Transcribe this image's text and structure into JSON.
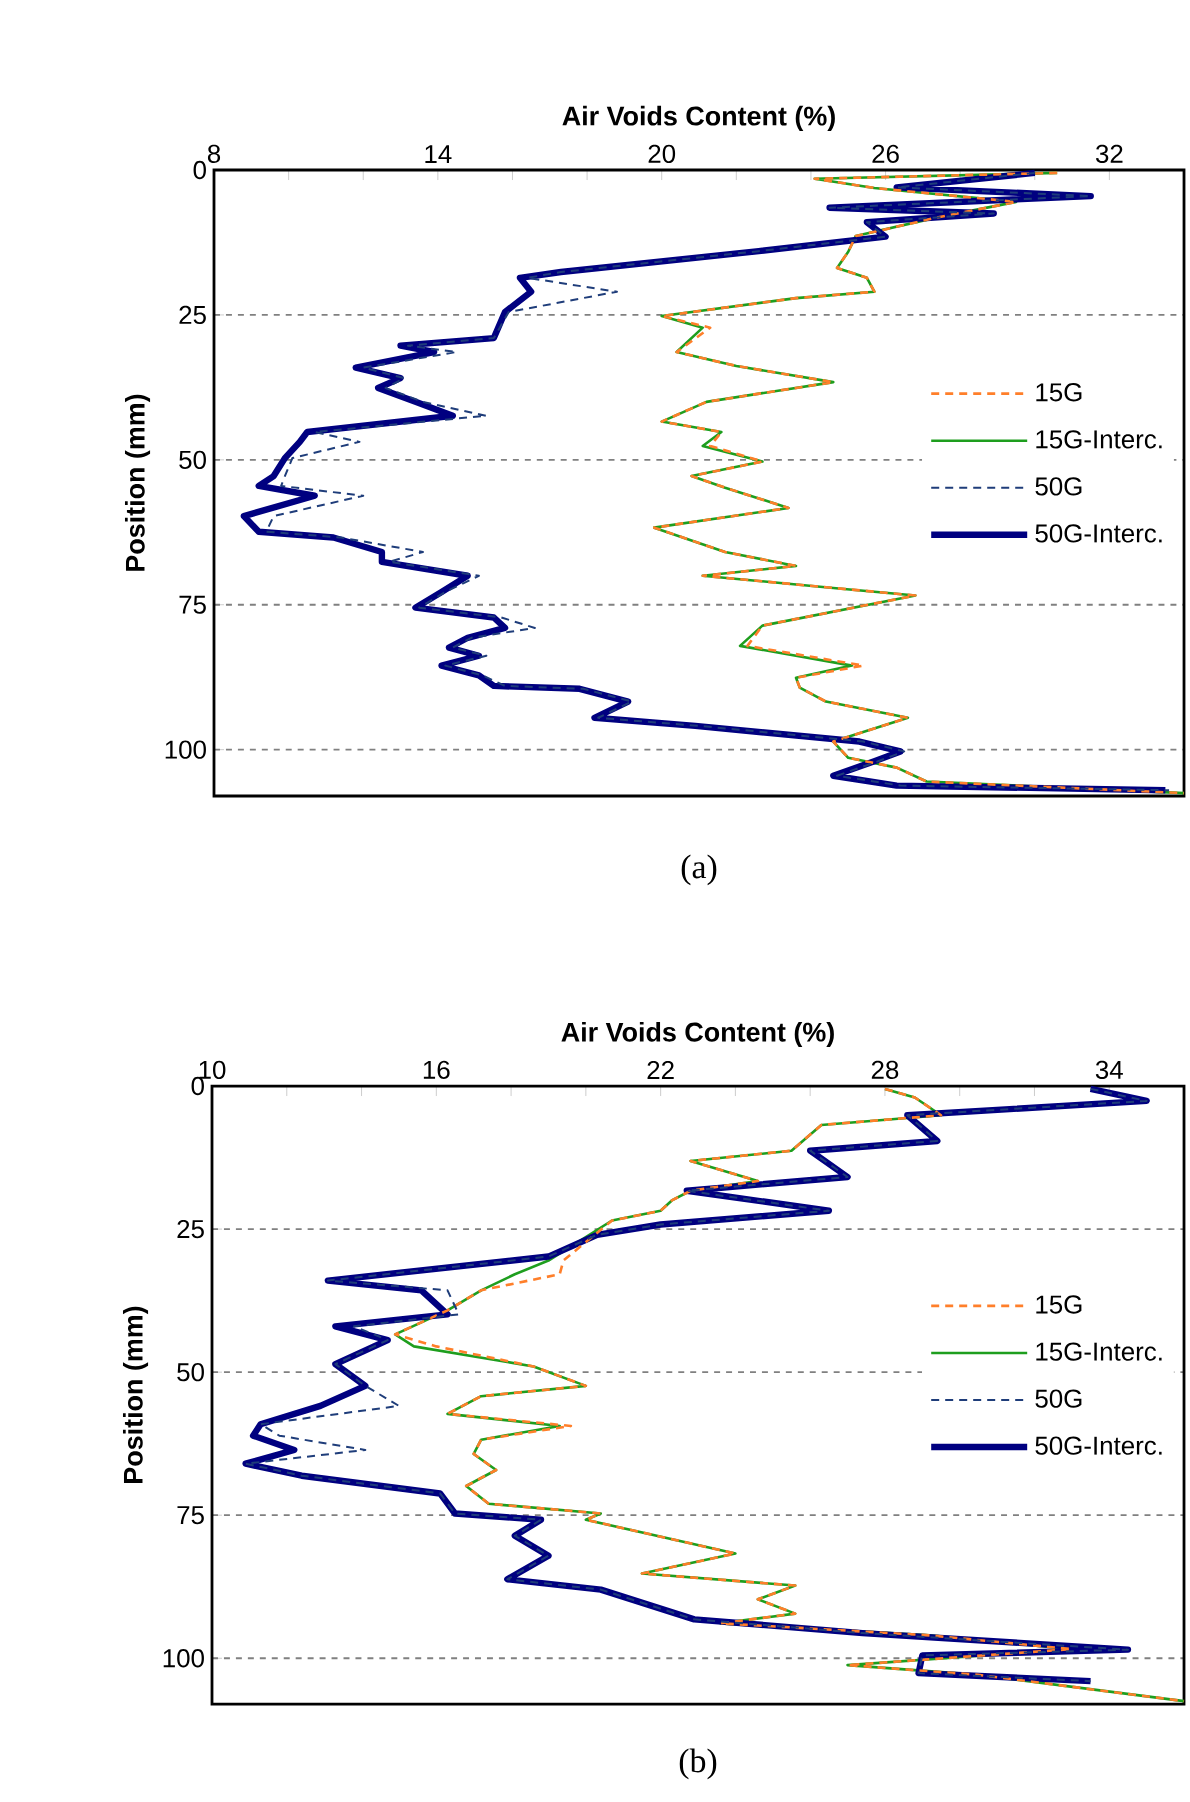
{
  "chart_data": [
    {
      "type": "line",
      "xlabel": "Air Voids Content (%)",
      "ylabel": "Position (mm)",
      "xlim": [
        8,
        34
      ],
      "ylim": [
        108,
        0
      ],
      "xticks": [
        8,
        {
          "value": 10,
          "label": null
        },
        {
          "value": 12,
          "label": null
        },
        14,
        {
          "value": 16,
          "label": null
        },
        {
          "value": 18,
          "label": null
        },
        20,
        {
          "value": 22,
          "label": null
        },
        {
          "value": 24,
          "label": null
        },
        26,
        {
          "value": 28,
          "label": null
        },
        {
          "value": 30,
          "label": null
        },
        32,
        {
          "value": 34,
          "label": null
        }
      ],
      "yticks": [
        0,
        25,
        50,
        75,
        100
      ],
      "grid": "y",
      "legend": "right",
      "annotations": [
        "(a)"
      ],
      "series": [
        {
          "name": "15G",
          "color": "#ff7f2a",
          "line_style": "dashed",
          "x": [
            30.6,
            24.1,
            25.7,
            29.5,
            27.3,
            25.2,
            25.0,
            24.7,
            25.5,
            25.7,
            23.6,
            20.0,
            21.3,
            20.4,
            22.0,
            24.6,
            21.2,
            20.0,
            21.6,
            21.3,
            22.7,
            20.8,
            21.7,
            23.4,
            19.8,
            21.7,
            23.6,
            21.1,
            24.6,
            26.8,
            22.7,
            22.3,
            25.4,
            23.6,
            23.7,
            24.4,
            26.6,
            24.6,
            25.0,
            26.3,
            27.1,
            34.0
          ],
          "values": [
            0.5,
            1.5,
            3.1,
            5.5,
            8.3,
            11.4,
            14.1,
            16.9,
            18.6,
            21,
            22.1,
            25.2,
            27.2,
            31.4,
            33.8,
            36.6,
            40,
            43.4,
            45.2,
            47.6,
            50.3,
            52.8,
            54.8,
            58.3,
            61.7,
            65.9,
            68.3,
            70,
            72.1,
            73.4,
            78.6,
            82.1,
            85.5,
            87.6,
            89.3,
            91.7,
            94.5,
            98.6,
            101.4,
            103.1,
            105.5,
            107.5
          ]
        },
        {
          "name": "15G-Interc.",
          "color": "#1e9e1e",
          "line_style": "solid",
          "x": [
            30.6,
            24.1,
            25.7,
            29.5,
            27.3,
            25.2,
            25.0,
            24.7,
            25.5,
            25.7,
            23.6,
            20.0,
            21.1,
            20.4,
            22.0,
            24.6,
            21.2,
            20.0,
            21.6,
            21.1,
            22.7,
            20.8,
            21.7,
            23.4,
            19.8,
            21.7,
            23.6,
            21.1,
            24.6,
            26.8,
            22.7,
            22.1,
            25.1,
            23.6,
            23.7,
            24.4,
            26.6,
            24.6,
            25.0,
            26.3,
            27.1,
            34.0
          ],
          "values": [
            0.5,
            1.5,
            3.1,
            5.5,
            8.3,
            11.4,
            14.1,
            16.9,
            18.6,
            21,
            22.1,
            25.2,
            27.2,
            31.4,
            33.8,
            36.6,
            40,
            43.4,
            45.2,
            47.6,
            50.3,
            52.8,
            54.8,
            58.3,
            61.7,
            65.9,
            68.3,
            70,
            72.1,
            73.4,
            78.6,
            82.1,
            85.5,
            87.6,
            89.3,
            91.7,
            94.5,
            98.6,
            101.4,
            103.1,
            105.5,
            107.5
          ]
        },
        {
          "name": "50G",
          "color": "#1f3d7a",
          "line_style": "dashed",
          "x": [
            30.0,
            26.3,
            31.5,
            24.5,
            28.9,
            25.5,
            26.0,
            22.6,
            17.3,
            16.4,
            18.8,
            15.9,
            15.5,
            13.2,
            14.5,
            12.0,
            13.1,
            12.6,
            13.6,
            15.3,
            10.7,
            11.9,
            10.1,
            9.9,
            9.8,
            12.0,
            9.6,
            9.4,
            11.4,
            13.6,
            12.7,
            15.1,
            14.2,
            13.5,
            15.7,
            16.6,
            14.9,
            14.4,
            15.3,
            14.2,
            15.2,
            15.8,
            17.9,
            19.2,
            18.3,
            21.0,
            25.4,
            26.5,
            25.8,
            24.7,
            26.4,
            33.6
          ],
          "values": [
            0.5,
            3,
            4.5,
            6.5,
            7.5,
            9,
            11.5,
            14,
            17.6,
            18.6,
            21,
            24.5,
            29,
            30.3,
            31.4,
            34.1,
            35.9,
            37.6,
            40,
            42.4,
            45.2,
            46.9,
            49.7,
            52.8,
            54.5,
            56.2,
            59.7,
            62.4,
            63.4,
            65.9,
            67.6,
            70,
            72.8,
            75.5,
            77.2,
            79,
            80.7,
            82.4,
            83.8,
            85.5,
            87.2,
            89,
            89.5,
            91.7,
            94.5,
            95.9,
            98.6,
            100.3,
            102,
            104.5,
            106.2,
            107
          ]
        },
        {
          "name": "50G-Interc.",
          "color": "#000080",
          "line_style": "solid",
          "x": [
            30.0,
            26.3,
            31.5,
            24.5,
            28.9,
            25.5,
            26.0,
            22.6,
            17.3,
            16.2,
            16.5,
            15.8,
            15.5,
            13.0,
            13.9,
            11.8,
            13.0,
            12.4,
            13.4,
            14.4,
            10.5,
            10.3,
            9.9,
            9.6,
            9.2,
            10.7,
            8.8,
            9.2,
            11.2,
            12.5,
            12.5,
            14.8,
            14.1,
            13.4,
            15.5,
            15.8,
            14.8,
            14.3,
            15.1,
            14.1,
            15.1,
            15.5,
            17.8,
            19.1,
            18.2,
            20.9,
            25.3,
            26.4,
            25.7,
            24.6,
            26.3,
            33.5
          ],
          "values": [
            0.5,
            3,
            4.5,
            6.5,
            7.5,
            9,
            11.5,
            14,
            17.6,
            18.6,
            21,
            24.5,
            29,
            30.3,
            31.4,
            34.1,
            35.9,
            37.6,
            40,
            42.4,
            45.2,
            46.9,
            49.7,
            52.8,
            54.5,
            56.2,
            59.7,
            62.4,
            63.4,
            65.9,
            67.6,
            70,
            72.8,
            75.5,
            77.2,
            79,
            80.7,
            82.4,
            83.8,
            85.5,
            87.2,
            89,
            89.5,
            91.7,
            94.5,
            95.9,
            98.6,
            100.3,
            102,
            104.5,
            106.2,
            107
          ]
        }
      ]
    },
    {
      "type": "line",
      "xlabel": "Air Voids Content (%)",
      "ylabel": "Position (mm)",
      "xlim": [
        10,
        36
      ],
      "ylim": [
        108,
        0
      ],
      "xticks": [
        10,
        {
          "value": 12,
          "label": null
        },
        {
          "value": 14,
          "label": null
        },
        16,
        {
          "value": 18,
          "label": null
        },
        {
          "value": 20,
          "label": null
        },
        22,
        {
          "value": 24,
          "label": null
        },
        {
          "value": 26,
          "label": null
        },
        28,
        {
          "value": 30,
          "label": null
        },
        {
          "value": 32,
          "label": null
        },
        34,
        {
          "value": 36,
          "label": null
        }
      ],
      "yticks": [
        0,
        25,
        50,
        75,
        100
      ],
      "grid": "y",
      "legend": "right",
      "annotations": [
        "(b)"
      ],
      "series": [
        {
          "name": "15G",
          "color": "#ff7f2a",
          "line_style": "dashed",
          "x": [
            28.0,
            28.8,
            29.5,
            26.3,
            25.5,
            22.8,
            24.6,
            22.8,
            22.3,
            22.0,
            20.7,
            19.4,
            19.3,
            17.2,
            16.3,
            14.9,
            16.0,
            18.6,
            20.0,
            17.2,
            16.3,
            19.6,
            17.2,
            17.0,
            17.6,
            16.8,
            17.4,
            20.4,
            20.0,
            24.0,
            21.5,
            25.6,
            24.6,
            25.6,
            23.6,
            29.2,
            33.0,
            27.0,
            30.5,
            36.0
          ],
          "values": [
            0.5,
            2,
            5.1,
            6.8,
            11.3,
            13.1,
            16.6,
            18.3,
            20,
            21.8,
            23.5,
            30.5,
            32.9,
            35.7,
            39.2,
            43.4,
            45.5,
            49,
            52.4,
            54.2,
            57.3,
            59.4,
            61.8,
            64.3,
            67.1,
            69.9,
            73,
            74.7,
            75.8,
            81.7,
            85.2,
            87.3,
            89.7,
            92.2,
            93.9,
            96,
            98.4,
            101.2,
            102.9,
            107.5
          ]
        },
        {
          "name": "15G-Interc.",
          "color": "#1e9e1e",
          "line_style": "solid",
          "x": [
            28.0,
            28.8,
            29.5,
            26.3,
            25.5,
            22.8,
            24.6,
            22.8,
            22.3,
            22.0,
            20.7,
            19.0,
            18.1,
            17.2,
            16.3,
            14.9,
            15.4,
            18.6,
            20.0,
            17.2,
            16.3,
            19.3,
            17.2,
            17.0,
            17.6,
            16.8,
            17.4,
            20.4,
            20.0,
            24.0,
            21.5,
            25.6,
            24.6,
            25.6,
            23.6,
            29.2,
            33.0,
            27.0,
            30.5,
            36.0
          ],
          "values": [
            0.5,
            2,
            5.1,
            6.8,
            11.3,
            13.1,
            16.6,
            18.3,
            20,
            21.8,
            23.5,
            30.5,
            32.9,
            35.7,
            39.2,
            43.4,
            45.5,
            49,
            52.4,
            54.2,
            57.3,
            59.4,
            61.8,
            64.3,
            67.1,
            69.9,
            73,
            74.7,
            75.8,
            81.7,
            85.2,
            87.3,
            89.7,
            92.2,
            93.9,
            96,
            98.4,
            101.2,
            102.9,
            107.5
          ]
        },
        {
          "name": "50G",
          "color": "#1f3d7a",
          "line_style": "dashed",
          "x": [
            33.5,
            35.0,
            28.6,
            29.4,
            26.0,
            27.0,
            22.7,
            26.5,
            22.0,
            20.3,
            19.0,
            13.1,
            16.3,
            16.6,
            13.8,
            14.7,
            13.3,
            14.1,
            15.0,
            11.3,
            11.8,
            14.1,
            10.9,
            12.4,
            16.1,
            16.5,
            18.8,
            18.1,
            19.0,
            17.9,
            20.4,
            22.9,
            27.4,
            34.5,
            29.0,
            28.9,
            33.5
          ],
          "values": [
            0.5,
            2.6,
            5.1,
            9.6,
            11.3,
            15.9,
            18.3,
            21.8,
            24.2,
            26,
            29.8,
            34,
            35.7,
            39.9,
            42,
            44.4,
            48.6,
            52.4,
            55.9,
            59.1,
            61.1,
            63.6,
            66,
            68.1,
            71.2,
            74.7,
            75.8,
            78.6,
            82.1,
            86.2,
            88,
            93.2,
            95.6,
            98.5,
            99.5,
            102.6,
            104
          ]
        },
        {
          "name": "50G-Interc.",
          "color": "#000080",
          "line_style": "solid",
          "x": [
            33.5,
            35.0,
            28.6,
            29.4,
            26.0,
            27.0,
            22.7,
            26.5,
            22.0,
            20.3,
            19.0,
            13.1,
            15.6,
            16.3,
            13.3,
            14.7,
            13.3,
            14.1,
            12.9,
            11.3,
            11.1,
            12.2,
            10.9,
            12.4,
            16.1,
            16.5,
            18.8,
            18.1,
            19.0,
            17.9,
            20.4,
            22.9,
            27.4,
            34.5,
            29.0,
            28.9,
            33.5
          ],
          "values": [
            0.5,
            2.6,
            5.1,
            9.6,
            11.3,
            15.9,
            18.3,
            21.8,
            24.2,
            26,
            29.8,
            34,
            35.7,
            39.9,
            42,
            44.4,
            48.6,
            52.4,
            55.9,
            59.1,
            61.1,
            63.6,
            66,
            68.1,
            71.2,
            74.7,
            75.8,
            78.6,
            82.1,
            86.2,
            88,
            93.2,
            95.6,
            98.5,
            99.5,
            102.6,
            104
          ]
        }
      ]
    }
  ]
}
